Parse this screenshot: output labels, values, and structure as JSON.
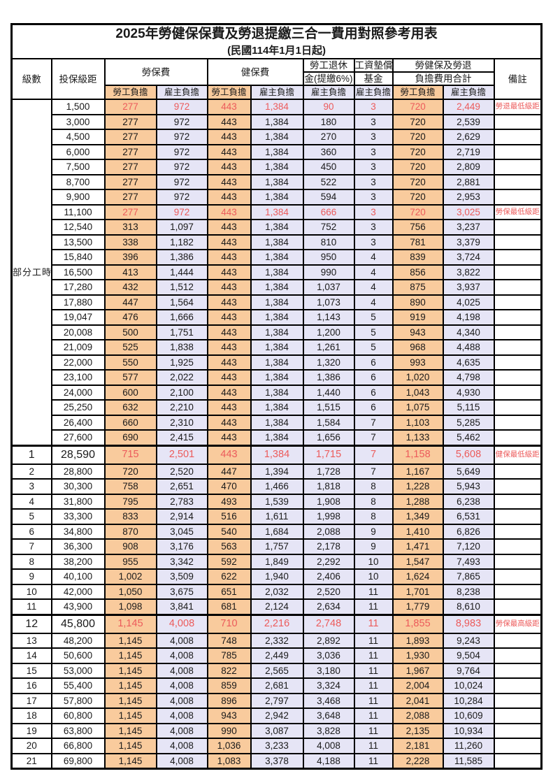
{
  "title": "2025年勞健保保費及勞退提繳三合一費用對照參考用表",
  "subtitle": "(民國114年1月1日起)",
  "colors": {
    "employee_bg": "#F9CB9D",
    "employer_bg": "#E6E5F6",
    "highlight_red": "#EC5B5B"
  },
  "header": {
    "level": "級數",
    "bracket": "投保級距",
    "labor_fee": "勞保費",
    "health_fee": "健保費",
    "pension_line1": "勞工退休",
    "pension_line2": "金(提繳6%)",
    "fund_line1": "工資墊償",
    "fund_line2": "基金",
    "total_line1": "勞健保及勞退",
    "total_line2": "負擔費用合計",
    "remark": "備註",
    "employee_share": "勞工負擔",
    "employer_share": "雇主負擔"
  },
  "table": {
    "columns": [
      "level",
      "bracket",
      "labor_employee",
      "labor_employer",
      "health_employee",
      "health_employer",
      "pension_employer",
      "fund_employer",
      "total_employee",
      "total_employer",
      "remark"
    ],
    "part_time_label": "部分工時",
    "part_time_row_count": 23,
    "red_row_indices": [
      0,
      7,
      23,
      34
    ],
    "special_row_indices": [
      23,
      34
    ],
    "rows": [
      [
        "",
        "1,500",
        "277",
        "972",
        "443",
        "1,384",
        "90",
        "3",
        "720",
        "2,449",
        "勞退最低級距"
      ],
      [
        "",
        "3,000",
        "277",
        "972",
        "443",
        "1,384",
        "180",
        "3",
        "720",
        "2,539",
        ""
      ],
      [
        "",
        "4,500",
        "277",
        "972",
        "443",
        "1,384",
        "270",
        "3",
        "720",
        "2,629",
        ""
      ],
      [
        "",
        "6,000",
        "277",
        "972",
        "443",
        "1,384",
        "360",
        "3",
        "720",
        "2,719",
        ""
      ],
      [
        "",
        "7,500",
        "277",
        "972",
        "443",
        "1,384",
        "450",
        "3",
        "720",
        "2,809",
        ""
      ],
      [
        "",
        "8,700",
        "277",
        "972",
        "443",
        "1,384",
        "522",
        "3",
        "720",
        "2,881",
        ""
      ],
      [
        "",
        "9,900",
        "277",
        "972",
        "443",
        "1,384",
        "594",
        "3",
        "720",
        "2,953",
        ""
      ],
      [
        "",
        "11,100",
        "277",
        "972",
        "443",
        "1,384",
        "666",
        "3",
        "720",
        "3,025",
        "勞保最低級距"
      ],
      [
        "",
        "12,540",
        "313",
        "1,097",
        "443",
        "1,384",
        "752",
        "3",
        "756",
        "3,237",
        ""
      ],
      [
        "",
        "13,500",
        "338",
        "1,182",
        "443",
        "1,384",
        "810",
        "3",
        "781",
        "3,379",
        ""
      ],
      [
        "",
        "15,840",
        "396",
        "1,386",
        "443",
        "1,384",
        "950",
        "4",
        "839",
        "3,724",
        ""
      ],
      [
        "",
        "16,500",
        "413",
        "1,444",
        "443",
        "1,384",
        "990",
        "4",
        "856",
        "3,822",
        ""
      ],
      [
        "",
        "17,280",
        "432",
        "1,512",
        "443",
        "1,384",
        "1,037",
        "4",
        "875",
        "3,937",
        ""
      ],
      [
        "",
        "17,880",
        "447",
        "1,564",
        "443",
        "1,384",
        "1,073",
        "4",
        "890",
        "4,025",
        ""
      ],
      [
        "",
        "19,047",
        "476",
        "1,666",
        "443",
        "1,384",
        "1,143",
        "5",
        "919",
        "4,198",
        ""
      ],
      [
        "",
        "20,008",
        "500",
        "1,751",
        "443",
        "1,384",
        "1,200",
        "5",
        "943",
        "4,340",
        ""
      ],
      [
        "",
        "21,009",
        "525",
        "1,838",
        "443",
        "1,384",
        "1,261",
        "5",
        "968",
        "4,488",
        ""
      ],
      [
        "",
        "22,000",
        "550",
        "1,925",
        "443",
        "1,384",
        "1,320",
        "6",
        "993",
        "4,635",
        ""
      ],
      [
        "",
        "23,100",
        "577",
        "2,022",
        "443",
        "1,384",
        "1,386",
        "6",
        "1,020",
        "4,798",
        ""
      ],
      [
        "",
        "24,000",
        "600",
        "2,100",
        "443",
        "1,384",
        "1,440",
        "6",
        "1,043",
        "4,930",
        ""
      ],
      [
        "",
        "25,250",
        "632",
        "2,210",
        "443",
        "1,384",
        "1,515",
        "6",
        "1,075",
        "5,115",
        ""
      ],
      [
        "",
        "26,400",
        "660",
        "2,310",
        "443",
        "1,384",
        "1,584",
        "7",
        "1,103",
        "5,285",
        ""
      ],
      [
        "",
        "27,600",
        "690",
        "2,415",
        "443",
        "1,384",
        "1,656",
        "7",
        "1,133",
        "5,462",
        ""
      ],
      [
        "1",
        "28,590",
        "715",
        "2,501",
        "443",
        "1,384",
        "1,715",
        "7",
        "1,158",
        "5,608",
        "健保最低級距"
      ],
      [
        "2",
        "28,800",
        "720",
        "2,520",
        "447",
        "1,394",
        "1,728",
        "7",
        "1,167",
        "5,649",
        ""
      ],
      [
        "3",
        "30,300",
        "758",
        "2,651",
        "470",
        "1,466",
        "1,818",
        "8",
        "1,228",
        "5,943",
        ""
      ],
      [
        "4",
        "31,800",
        "795",
        "2,783",
        "493",
        "1,539",
        "1,908",
        "8",
        "1,288",
        "6,238",
        ""
      ],
      [
        "5",
        "33,300",
        "833",
        "2,914",
        "516",
        "1,611",
        "1,998",
        "8",
        "1,349",
        "6,531",
        ""
      ],
      [
        "6",
        "34,800",
        "870",
        "3,045",
        "540",
        "1,684",
        "2,088",
        "9",
        "1,410",
        "6,826",
        ""
      ],
      [
        "7",
        "36,300",
        "908",
        "3,176",
        "563",
        "1,757",
        "2,178",
        "9",
        "1,471",
        "7,120",
        ""
      ],
      [
        "8",
        "38,200",
        "955",
        "3,342",
        "592",
        "1,849",
        "2,292",
        "10",
        "1,547",
        "7,493",
        ""
      ],
      [
        "9",
        "40,100",
        "1,002",
        "3,509",
        "622",
        "1,940",
        "2,406",
        "10",
        "1,624",
        "7,865",
        ""
      ],
      [
        "10",
        "42,000",
        "1,050",
        "3,675",
        "651",
        "2,032",
        "2,520",
        "11",
        "1,701",
        "8,238",
        ""
      ],
      [
        "11",
        "43,900",
        "1,098",
        "3,841",
        "681",
        "2,124",
        "2,634",
        "11",
        "1,779",
        "8,610",
        ""
      ],
      [
        "12",
        "45,800",
        "1,145",
        "4,008",
        "710",
        "2,216",
        "2,748",
        "11",
        "1,855",
        "8,983",
        "勞保最高級距"
      ],
      [
        "13",
        "48,200",
        "1,145",
        "4,008",
        "748",
        "2,332",
        "2,892",
        "11",
        "1,893",
        "9,243",
        ""
      ],
      [
        "14",
        "50,600",
        "1,145",
        "4,008",
        "785",
        "2,449",
        "3,036",
        "11",
        "1,930",
        "9,504",
        ""
      ],
      [
        "15",
        "53,000",
        "1,145",
        "4,008",
        "822",
        "2,565",
        "3,180",
        "11",
        "1,967",
        "9,764",
        ""
      ],
      [
        "16",
        "55,400",
        "1,145",
        "4,008",
        "859",
        "2,681",
        "3,324",
        "11",
        "2,004",
        "10,024",
        ""
      ],
      [
        "17",
        "57,800",
        "1,145",
        "4,008",
        "896",
        "2,797",
        "3,468",
        "11",
        "2,041",
        "10,284",
        ""
      ],
      [
        "18",
        "60,800",
        "1,145",
        "4,008",
        "943",
        "2,942",
        "3,648",
        "11",
        "2,088",
        "10,609",
        ""
      ],
      [
        "19",
        "63,800",
        "1,145",
        "4,008",
        "990",
        "3,087",
        "3,828",
        "11",
        "2,135",
        "10,934",
        ""
      ],
      [
        "20",
        "66,800",
        "1,145",
        "4,008",
        "1,036",
        "3,233",
        "4,008",
        "11",
        "2,181",
        "11,260",
        ""
      ],
      [
        "21",
        "69,800",
        "1,145",
        "4,008",
        "1,083",
        "3,378",
        "4,188",
        "11",
        "2,228",
        "11,585",
        ""
      ]
    ]
  }
}
